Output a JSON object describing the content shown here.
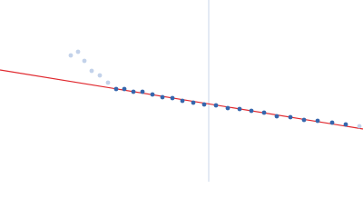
{
  "chart_data": {
    "type": "scatter",
    "xlim": [
      0,
      400
    ],
    "ylim": [
      0,
      200
    ],
    "vline": {
      "x": 230,
      "color": "#c8d4ea"
    },
    "fit_line": {
      "x": [
        0,
        400
      ],
      "values": [
        123,
        58
      ],
      "color": "#e0282e"
    },
    "series": [
      {
        "color": "#c3d2ea",
        "x": [
          78,
          86,
          93,
          101,
          110,
          119,
          396
        ],
        "values": [
          139,
          143,
          133,
          122,
          117,
          109,
          61
        ]
      },
      {
        "color": "#3566ad",
        "x": [
          128,
          137,
          147,
          157,
          168,
          179,
          190,
          201,
          213,
          225,
          238,
          251,
          264,
          277,
          291,
          305,
          320,
          335,
          350,
          366,
          381
        ],
        "values": [
          102,
          102,
          99,
          99,
          96,
          93,
          92,
          89,
          87,
          85,
          84,
          81,
          80,
          78,
          76,
          72,
          71,
          68,
          67,
          65,
          63
        ]
      }
    ]
  }
}
